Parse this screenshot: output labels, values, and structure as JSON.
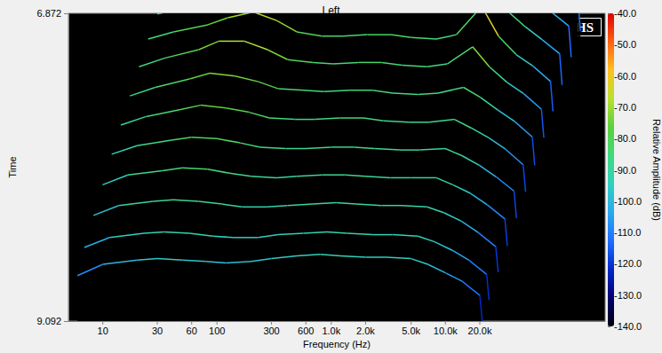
{
  "chart_data": {
    "type": "waterfall",
    "title": "Left",
    "annotations": [
      "PHS"
    ],
    "x_label": "Frequency (Hz)",
    "y_label": "Time",
    "log": "x",
    "grid": false,
    "xlim": [
      5,
      250000
    ],
    "xticks": [
      10,
      30,
      60,
      100,
      300,
      600,
      {
        "value": 1000,
        "label": "1.0k"
      },
      {
        "value": 2000,
        "label": "2.0k"
      },
      {
        "value": 5000,
        "label": "5.0k"
      },
      {
        "value": 10000,
        "label": "10.0k"
      },
      {
        "value": 20000,
        "label": "20.0k"
      }
    ],
    "ylim": [
      6.872,
      9.092
    ],
    "yticks": [
      6.872,
      9.092
    ],
    "x": [
      6,
      10,
      20,
      30,
      50,
      80,
      120,
      200,
      300,
      500,
      800,
      1200,
      2000,
      3000,
      5000,
      7000,
      10000,
      14000,
      20000,
      21000
    ],
    "slices": [
      {
        "time": 7.05,
        "values": [
          -90,
          -85,
          -82,
          -80,
          -80,
          -82,
          -84,
          -85,
          -86,
          -85,
          -84,
          -86,
          -88,
          -86,
          -84,
          -88,
          -95,
          -102,
          -112,
          -135
        ]
      },
      {
        "time": 7.24,
        "values": [
          -88,
          -84,
          -80,
          -78,
          -76,
          -80,
          -83,
          -84,
          -85,
          -84,
          -83,
          -85,
          -86,
          -84,
          -78,
          -86,
          -96,
          -103,
          -113,
          -135
        ]
      },
      {
        "time": 7.43,
        "values": [
          -86,
          -82,
          -78,
          -74,
          -70,
          -76,
          -82,
          -84,
          -84,
          -83,
          -82,
          -84,
          -85,
          -83,
          -68,
          -84,
          -95,
          -104,
          -114,
          -136
        ]
      },
      {
        "time": 7.62,
        "values": [
          -85,
          -80,
          -75,
          -70,
          -66,
          -72,
          -80,
          -83,
          -83,
          -82,
          -82,
          -84,
          -85,
          -82,
          -62,
          -83,
          -96,
          -104,
          -115,
          -136
        ]
      },
      {
        "time": 7.81,
        "values": [
          -86,
          -80,
          -74,
          -68,
          -68,
          -74,
          -81,
          -83,
          -84,
          -83,
          -83,
          -85,
          -86,
          -84,
          -72,
          -86,
          -97,
          -105,
          -116,
          -136
        ]
      },
      {
        "time": 8.0,
        "values": [
          -88,
          -82,
          -76,
          -72,
          -74,
          -78,
          -83,
          -84,
          -85,
          -84,
          -84,
          -86,
          -87,
          -86,
          -82,
          -89,
          -98,
          -106,
          -117,
          -137
        ]
      },
      {
        "time": 8.19,
        "values": [
          -90,
          -84,
          -79,
          -76,
          -78,
          -81,
          -85,
          -86,
          -86,
          -85,
          -85,
          -87,
          -88,
          -88,
          -86,
          -92,
          -99,
          -107,
          -118,
          -137
        ]
      },
      {
        "time": 8.38,
        "values": [
          -92,
          -86,
          -82,
          -80,
          -81,
          -84,
          -87,
          -88,
          -88,
          -87,
          -87,
          -88,
          -89,
          -89,
          -88,
          -93,
          -100,
          -108,
          -118,
          -137
        ]
      },
      {
        "time": 8.57,
        "values": [
          -95,
          -88,
          -85,
          -83,
          -84,
          -87,
          -89,
          -90,
          -89,
          -88,
          -88,
          -89,
          -90,
          -90,
          -90,
          -95,
          -101,
          -109,
          -119,
          -138
        ]
      },
      {
        "time": 8.76,
        "values": [
          -98,
          -91,
          -88,
          -87,
          -88,
          -90,
          -92,
          -92,
          -91,
          -90,
          -89,
          -90,
          -91,
          -91,
          -92,
          -96,
          -102,
          -110,
          -120,
          -138
        ]
      },
      {
        "time": 8.95,
        "values": [
          -102,
          -95,
          -92,
          -91,
          -92,
          -94,
          -95,
          -95,
          -93,
          -92,
          -91,
          -92,
          -93,
          -93,
          -94,
          -98,
          -104,
          -111,
          -121,
          -139
        ]
      },
      {
        "time": 9.092,
        "values": [
          -108,
          -100,
          -97,
          -96,
          -97,
          -98,
          -99,
          -98,
          -96,
          -94,
          -93,
          -94,
          -95,
          -95,
          -96,
          -100,
          -106,
          -112,
          -122,
          -140
        ]
      }
    ],
    "colorbar": {
      "label": "Relative Amplitude (dB)",
      "range": [
        -140,
        -40
      ],
      "ticks": [
        {
          "value": -40,
          "label": "-40.0"
        },
        {
          "value": -50,
          "label": "-50.0"
        },
        {
          "value": -60,
          "label": "-60.0"
        },
        {
          "value": -70,
          "label": "-70.0"
        },
        {
          "value": -80,
          "label": "-80.0"
        },
        {
          "value": -90,
          "label": "-90.0"
        },
        {
          "value": -100,
          "label": "-100.0"
        },
        {
          "value": -110,
          "label": "-110.0"
        },
        {
          "value": -120,
          "label": "-120.0"
        },
        {
          "value": -130,
          "label": "-130.0"
        },
        {
          "value": -140,
          "label": "-140.0"
        }
      ]
    }
  }
}
